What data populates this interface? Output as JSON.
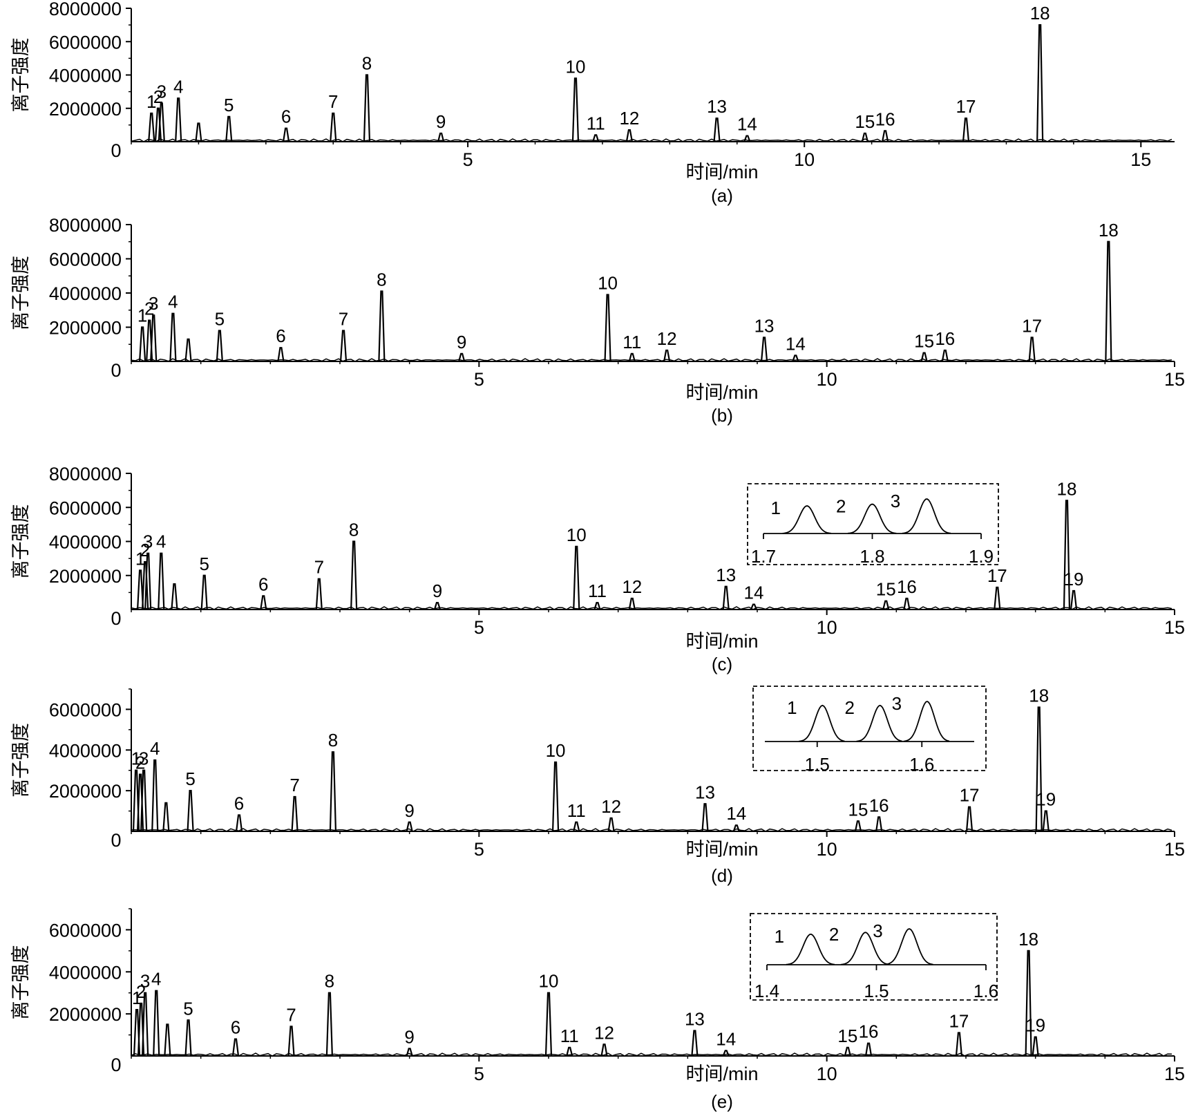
{
  "chart_data": [
    {
      "type": "line",
      "panel_label": "(a)",
      "xlabel": "时间/min",
      "ylabel": "离子强度",
      "xlim": [
        0,
        15.5
      ],
      "ylim": [
        0,
        8000000
      ],
      "x_ticks": [
        5,
        10,
        15
      ],
      "y_ticks": [
        2000000,
        4000000,
        6000000,
        8000000
      ],
      "peaks": [
        {
          "label": "1",
          "x": 0.3,
          "y": 1700000
        },
        {
          "label": "2",
          "x": 0.4,
          "y": 2000000
        },
        {
          "label": "3",
          "x": 0.45,
          "y": 2300000
        },
        {
          "label": "4",
          "x": 0.7,
          "y": 2600000
        },
        {
          "label": "",
          "x": 1.0,
          "y": 1100000
        },
        {
          "label": "5",
          "x": 1.45,
          "y": 1500000
        },
        {
          "label": "6",
          "x": 2.3,
          "y": 800000
        },
        {
          "label": "7",
          "x": 3.0,
          "y": 1700000
        },
        {
          "label": "8",
          "x": 3.5,
          "y": 4000000
        },
        {
          "label": "9",
          "x": 4.6,
          "y": 500000
        },
        {
          "label": "10",
          "x": 6.6,
          "y": 3800000
        },
        {
          "label": "11",
          "x": 6.9,
          "y": 400000
        },
        {
          "label": "12",
          "x": 7.4,
          "y": 700000
        },
        {
          "label": "13",
          "x": 8.7,
          "y": 1400000
        },
        {
          "label": "14",
          "x": 9.15,
          "y": 350000
        },
        {
          "label": "15",
          "x": 10.9,
          "y": 500000
        },
        {
          "label": "16",
          "x": 11.2,
          "y": 650000
        },
        {
          "label": "17",
          "x": 12.4,
          "y": 1400000
        },
        {
          "label": "18",
          "x": 13.5,
          "y": 7000000
        }
      ]
    },
    {
      "type": "line",
      "panel_label": "(b)",
      "xlabel": "时间/min",
      "ylabel": "离子强度",
      "xlim": [
        0,
        15
      ],
      "ylim": [
        0,
        8000000
      ],
      "x_ticks": [
        5,
        10,
        15
      ],
      "y_ticks": [
        2000000,
        4000000,
        6000000,
        8000000
      ],
      "peaks": [
        {
          "label": "1",
          "x": 0.16,
          "y": 2000000
        },
        {
          "label": "2",
          "x": 0.26,
          "y": 2400000
        },
        {
          "label": "3",
          "x": 0.32,
          "y": 2700000
        },
        {
          "label": "4",
          "x": 0.6,
          "y": 2800000
        },
        {
          "label": "",
          "x": 0.82,
          "y": 1300000
        },
        {
          "label": "5",
          "x": 1.27,
          "y": 1800000
        },
        {
          "label": "6",
          "x": 2.15,
          "y": 800000
        },
        {
          "label": "7",
          "x": 3.05,
          "y": 1800000
        },
        {
          "label": "8",
          "x": 3.6,
          "y": 4100000
        },
        {
          "label": "9",
          "x": 4.75,
          "y": 450000
        },
        {
          "label": "10",
          "x": 6.85,
          "y": 3900000
        },
        {
          "label": "11",
          "x": 7.2,
          "y": 450000
        },
        {
          "label": "12",
          "x": 7.7,
          "y": 650000
        },
        {
          "label": "13",
          "x": 9.1,
          "y": 1400000
        },
        {
          "label": "14",
          "x": 9.55,
          "y": 350000
        },
        {
          "label": "15",
          "x": 11.4,
          "y": 500000
        },
        {
          "label": "16",
          "x": 11.7,
          "y": 650000
        },
        {
          "label": "17",
          "x": 12.95,
          "y": 1400000
        },
        {
          "label": "18",
          "x": 14.05,
          "y": 7000000
        }
      ]
    },
    {
      "type": "line",
      "panel_label": "(c)",
      "xlabel": "时间/min",
      "ylabel": "离子强度",
      "xlim": [
        0,
        15
      ],
      "ylim": [
        0,
        8000000
      ],
      "x_ticks": [
        5,
        10,
        15
      ],
      "y_ticks": [
        2000000,
        4000000,
        6000000,
        8000000
      ],
      "peaks": [
        {
          "label": "1",
          "x": 0.13,
          "y": 2300000
        },
        {
          "label": "2",
          "x": 0.2,
          "y": 2800000
        },
        {
          "label": "3",
          "x": 0.24,
          "y": 3300000
        },
        {
          "label": "4",
          "x": 0.43,
          "y": 3300000
        },
        {
          "label": "",
          "x": 0.62,
          "y": 1500000
        },
        {
          "label": "5",
          "x": 1.05,
          "y": 2000000
        },
        {
          "label": "6",
          "x": 1.9,
          "y": 800000
        },
        {
          "label": "7",
          "x": 2.7,
          "y": 1800000
        },
        {
          "label": "8",
          "x": 3.2,
          "y": 4000000
        },
        {
          "label": "9",
          "x": 4.4,
          "y": 400000
        },
        {
          "label": "10",
          "x": 6.4,
          "y": 3700000
        },
        {
          "label": "11",
          "x": 6.7,
          "y": 400000
        },
        {
          "label": "12",
          "x": 7.2,
          "y": 650000
        },
        {
          "label": "13",
          "x": 8.55,
          "y": 1350000
        },
        {
          "label": "14",
          "x": 8.95,
          "y": 300000
        },
        {
          "label": "15",
          "x": 10.85,
          "y": 500000
        },
        {
          "label": "16",
          "x": 11.15,
          "y": 650000
        },
        {
          "label": "17",
          "x": 12.45,
          "y": 1300000
        },
        {
          "label": "18",
          "x": 13.45,
          "y": 6400000
        },
        {
          "label": "19",
          "x": 13.55,
          "y": 1100000
        }
      ],
      "inset": {
        "xlim": [
          1.7,
          1.9
        ],
        "x_ticks": [
          "1.7",
          "1.8",
          "1.9"
        ],
        "peaks": [
          {
            "label": "1",
            "x": 1.74,
            "y": 0.8
          },
          {
            "label": "2",
            "x": 1.8,
            "y": 0.85
          },
          {
            "label": "3",
            "x": 1.85,
            "y": 1.0
          }
        ]
      }
    },
    {
      "type": "line",
      "panel_label": "(d)",
      "xlabel": "时间/min",
      "ylabel": "离子强度",
      "xlim": [
        0,
        15
      ],
      "ylim": [
        0,
        7000000
      ],
      "x_ticks": [
        5,
        10,
        15
      ],
      "y_ticks": [
        2000000,
        4000000,
        6000000
      ],
      "peaks": [
        {
          "label": "1",
          "x": 0.07,
          "y": 3000000
        },
        {
          "label": "2",
          "x": 0.13,
          "y": 2800000
        },
        {
          "label": "3",
          "x": 0.18,
          "y": 3000000
        },
        {
          "label": "4",
          "x": 0.34,
          "y": 3500000
        },
        {
          "label": "",
          "x": 0.5,
          "y": 1400000
        },
        {
          "label": "5",
          "x": 0.85,
          "y": 2000000
        },
        {
          "label": "6",
          "x": 1.55,
          "y": 800000
        },
        {
          "label": "7",
          "x": 2.35,
          "y": 1700000
        },
        {
          "label": "8",
          "x": 2.9,
          "y": 3900000
        },
        {
          "label": "9",
          "x": 4.0,
          "y": 450000
        },
        {
          "label": "10",
          "x": 6.1,
          "y": 3400000
        },
        {
          "label": "11",
          "x": 6.4,
          "y": 450000
        },
        {
          "label": "12",
          "x": 6.9,
          "y": 650000
        },
        {
          "label": "13",
          "x": 8.25,
          "y": 1350000
        },
        {
          "label": "14",
          "x": 8.7,
          "y": 300000
        },
        {
          "label": "15",
          "x": 10.45,
          "y": 500000
        },
        {
          "label": "16",
          "x": 10.75,
          "y": 700000
        },
        {
          "label": "17",
          "x": 12.05,
          "y": 1200000
        },
        {
          "label": "18",
          "x": 13.05,
          "y": 6100000
        },
        {
          "label": "19",
          "x": 13.15,
          "y": 1000000
        }
      ],
      "inset": {
        "xlim": [
          1.45,
          1.65
        ],
        "x_ticks": [
          "1.5",
          "1.6"
        ],
        "peaks": [
          {
            "label": "1",
            "x": 1.505,
            "y": 0.9
          },
          {
            "label": "2",
            "x": 1.56,
            "y": 0.9
          },
          {
            "label": "3",
            "x": 1.605,
            "y": 1.0
          }
        ]
      }
    },
    {
      "type": "line",
      "panel_label": "(e)",
      "xlabel": "时间/min",
      "ylabel": "离子强度",
      "xlim": [
        0,
        15
      ],
      "ylim": [
        0,
        7000000
      ],
      "x_ticks": [
        5,
        10,
        15
      ],
      "y_ticks": [
        2000000,
        4000000,
        6000000
      ],
      "peaks": [
        {
          "label": "1",
          "x": 0.08,
          "y": 2200000
        },
        {
          "label": "2",
          "x": 0.14,
          "y": 2500000
        },
        {
          "label": "3",
          "x": 0.2,
          "y": 3000000
        },
        {
          "label": "4",
          "x": 0.36,
          "y": 3100000
        },
        {
          "label": "",
          "x": 0.52,
          "y": 1500000
        },
        {
          "label": "5",
          "x": 0.82,
          "y": 1700000
        },
        {
          "label": "6",
          "x": 1.5,
          "y": 800000
        },
        {
          "label": "7",
          "x": 2.3,
          "y": 1400000
        },
        {
          "label": "8",
          "x": 2.85,
          "y": 3000000
        },
        {
          "label": "9",
          "x": 4.0,
          "y": 350000
        },
        {
          "label": "10",
          "x": 6.0,
          "y": 3000000
        },
        {
          "label": "11",
          "x": 6.3,
          "y": 400000
        },
        {
          "label": "12",
          "x": 6.8,
          "y": 550000
        },
        {
          "label": "13",
          "x": 8.1,
          "y": 1200000
        },
        {
          "label": "14",
          "x": 8.55,
          "y": 250000
        },
        {
          "label": "15",
          "x": 10.3,
          "y": 400000
        },
        {
          "label": "16",
          "x": 10.6,
          "y": 600000
        },
        {
          "label": "17",
          "x": 11.9,
          "y": 1100000
        },
        {
          "label": "18",
          "x": 12.9,
          "y": 5000000
        },
        {
          "label": "19",
          "x": 13.0,
          "y": 900000
        }
      ],
      "inset": {
        "xlim": [
          1.4,
          1.6
        ],
        "x_ticks": [
          "1.4",
          "1.5",
          "1.6"
        ],
        "peaks": [
          {
            "label": "1",
            "x": 1.44,
            "y": 0.85
          },
          {
            "label": "2",
            "x": 1.49,
            "y": 0.9
          },
          {
            "label": "3",
            "x": 1.53,
            "y": 1.0
          }
        ]
      }
    }
  ]
}
